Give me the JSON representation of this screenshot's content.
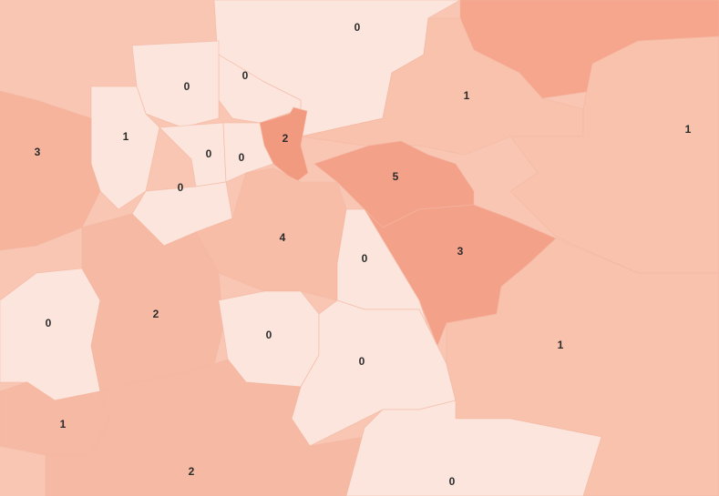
{
  "map": {
    "colors": {
      "background": "#f8c6b3",
      "zero": "#fce5dc",
      "low": "#f8c2ad",
      "mid": "#f6b49d",
      "high": "#f4a18a",
      "top": "#f29a80"
    },
    "regions": [
      {
        "value": "0",
        "color": "#fce5dc"
      },
      {
        "value": "0",
        "color": "#fce5dc"
      },
      {
        "value": "0",
        "color": "#fce5dc"
      },
      {
        "value": "1",
        "color": "#f8c2ad"
      },
      {
        "value": "1",
        "color": "#f8c2ad"
      },
      {
        "value": "1",
        "color": "#fce5dc"
      },
      {
        "value": "3",
        "color": "#f6b49d"
      },
      {
        "value": "2",
        "color": "#f29a80"
      },
      {
        "value": "0",
        "color": "#fce5dc"
      },
      {
        "value": "0",
        "color": "#fce5dc"
      },
      {
        "value": "0",
        "color": "#fce5dc"
      },
      {
        "value": "5",
        "color": "#f4a18a"
      },
      {
        "value": "4",
        "color": "#f7bda7"
      },
      {
        "value": "3",
        "color": "#f4a18a"
      },
      {
        "value": "0",
        "color": "#fce5dc"
      },
      {
        "value": "0",
        "color": "#fce5dc"
      },
      {
        "value": "2",
        "color": "#f6b9a3"
      },
      {
        "value": "0",
        "color": "#fce5dc"
      },
      {
        "value": "0",
        "color": "#fce5dc"
      },
      {
        "value": "1",
        "color": "#f8c2ad"
      },
      {
        "value": "1",
        "color": "#f6b9a3"
      },
      {
        "value": "2",
        "color": "#f6b9a3"
      },
      {
        "value": "0",
        "color": "#fce5dc"
      }
    ],
    "unlabeled_region_color": "#f5a68c"
  }
}
